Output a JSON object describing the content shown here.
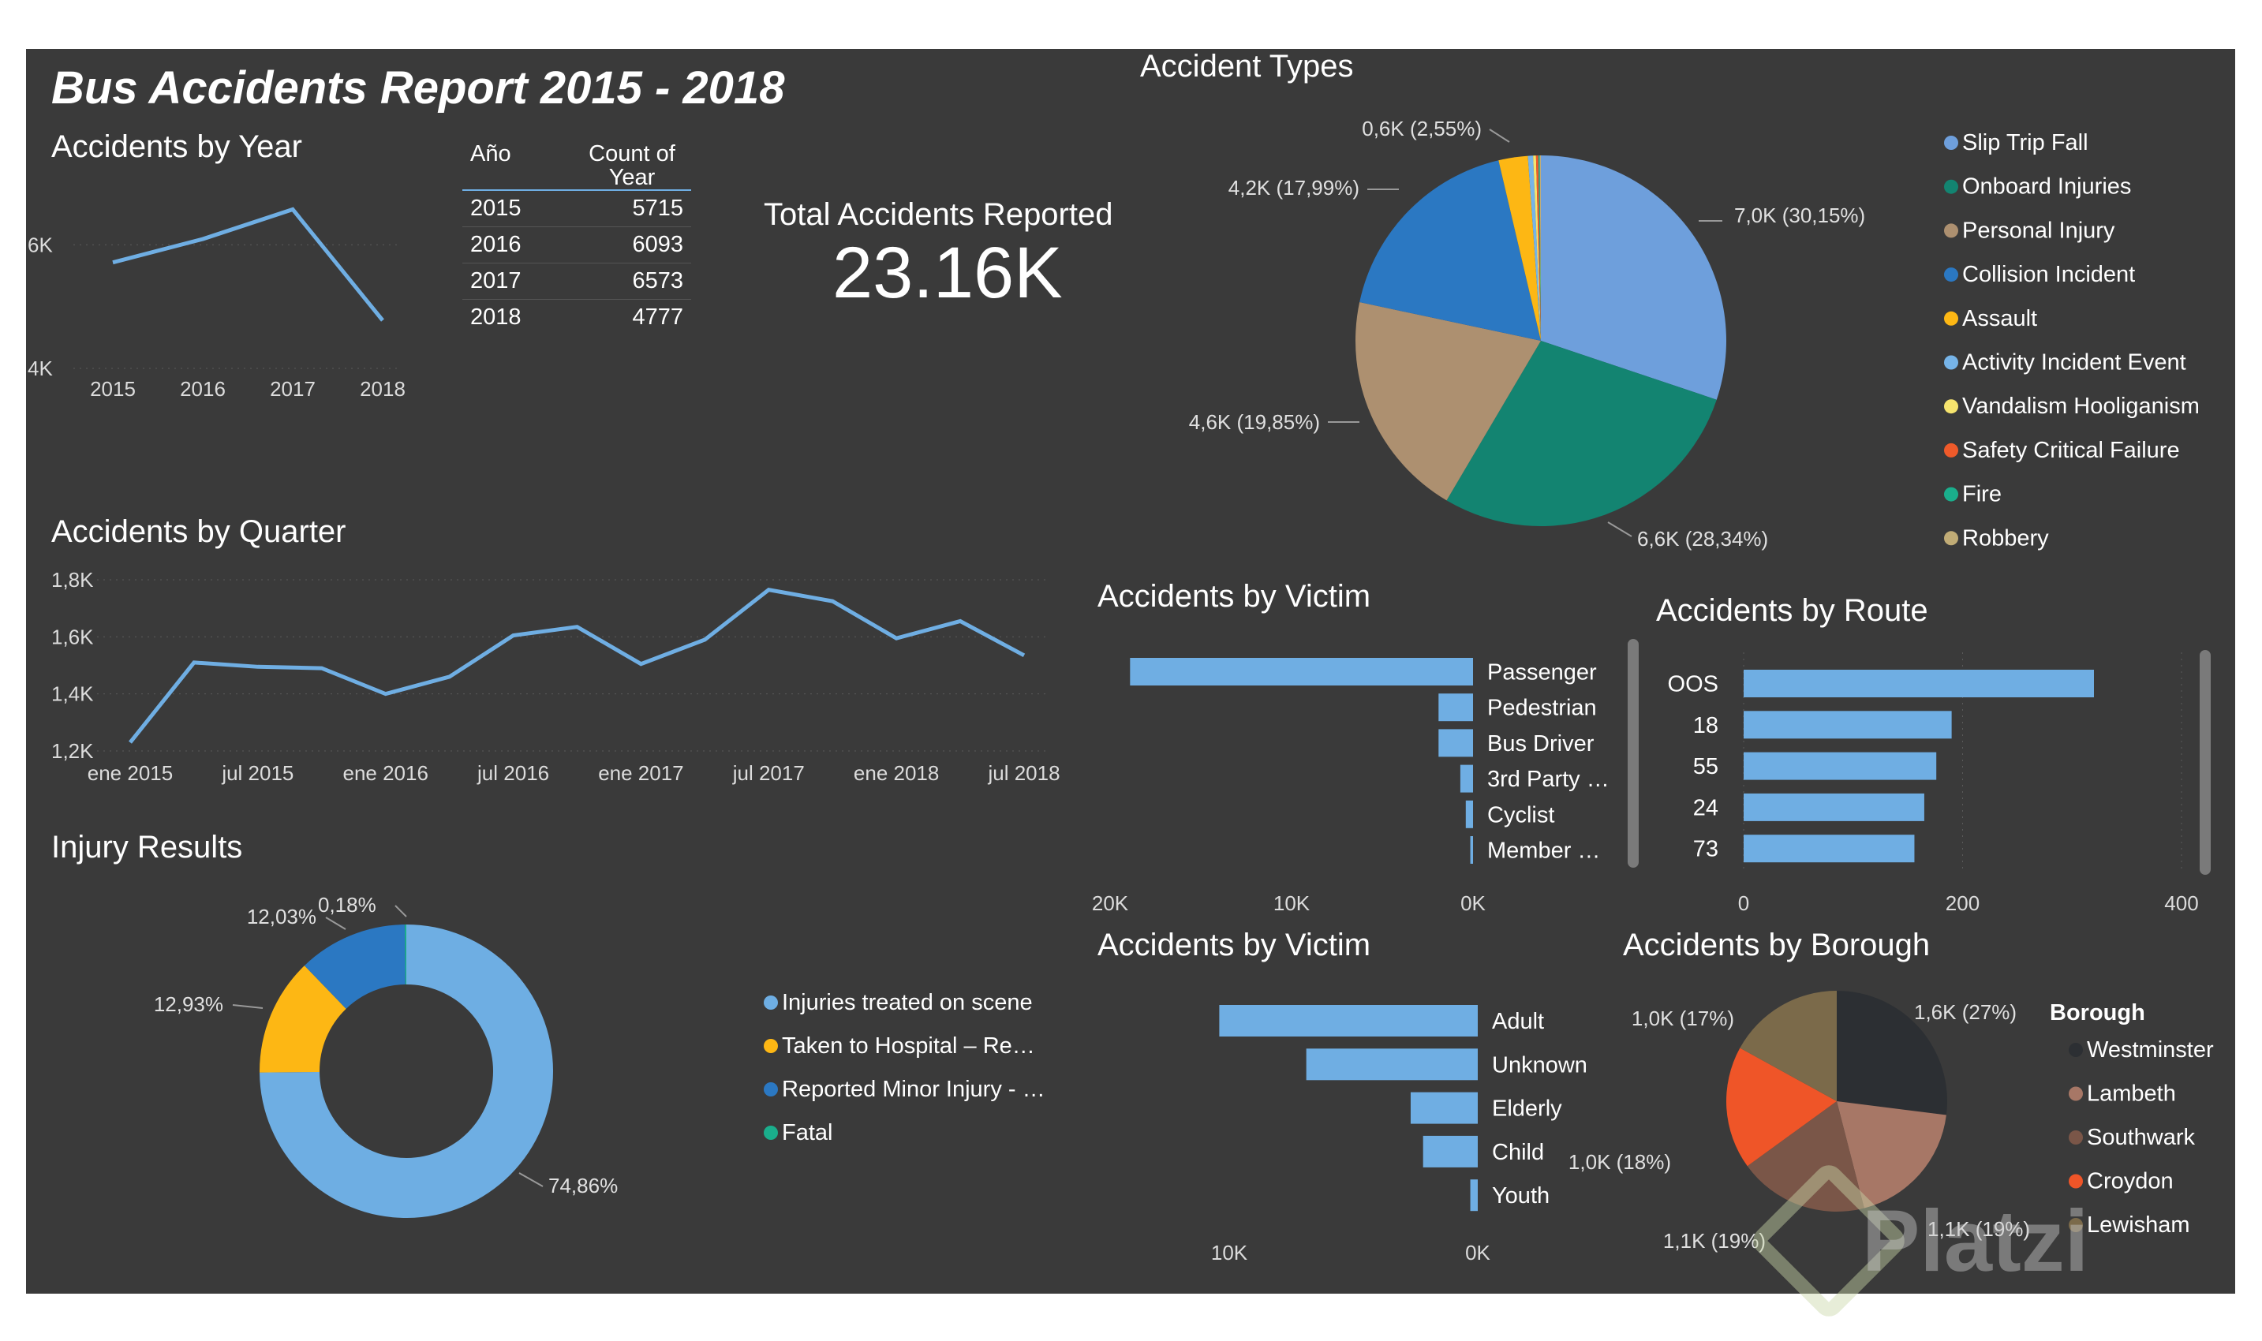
{
  "report_title": "Bus Accidents Report 2015 - 2018",
  "colors": {
    "bar": "#6FAEE3",
    "line": "#6FAEE3",
    "bg": "#3a3a3a"
  },
  "kpi": {
    "label": "Total Accidents Reported",
    "value": "23.16K"
  },
  "year_table": {
    "headers": [
      "Año",
      "Count of Year"
    ],
    "rows": [
      [
        "2015",
        "5715"
      ],
      [
        "2016",
        "6093"
      ],
      [
        "2017",
        "6573"
      ],
      [
        "2018",
        "4777"
      ]
    ]
  },
  "chart_data": [
    {
      "id": "by_year",
      "type": "line",
      "title": "Accidents by Year",
      "categories": [
        "2015",
        "2016",
        "2017",
        "2018"
      ],
      "values": [
        5715,
        6093,
        6573,
        4777
      ],
      "ylim": [
        4000,
        7000
      ],
      "yticks": [
        {
          "v": 4000,
          "label": "4K"
        },
        {
          "v": 6000,
          "label": "6K"
        }
      ]
    },
    {
      "id": "by_quarter",
      "type": "line",
      "title": "Accidents by Quarter",
      "categories": [
        "Q1 2015",
        "Q2 2015",
        "Q3 2015",
        "Q4 2015",
        "Q1 2016",
        "Q2 2016",
        "Q3 2016",
        "Q4 2016",
        "Q1 2017",
        "Q2 2017",
        "Q3 2017",
        "Q4 2017",
        "Q1 2018",
        "Q2 2018",
        "Q3 2018"
      ],
      "values": [
        1230,
        1510,
        1495,
        1490,
        1400,
        1460,
        1605,
        1635,
        1505,
        1590,
        1765,
        1725,
        1595,
        1655,
        1535
      ],
      "xticks": [
        {
          "i": 0,
          "label": "ene 2015"
        },
        {
          "i": 2,
          "label": "jul 2015"
        },
        {
          "i": 4,
          "label": "ene 2016"
        },
        {
          "i": 6,
          "label": "jul 2016"
        },
        {
          "i": 8,
          "label": "ene 2017"
        },
        {
          "i": 10,
          "label": "jul 2017"
        },
        {
          "i": 12,
          "label": "ene 2018"
        },
        {
          "i": 14,
          "label": "jul 2018"
        }
      ],
      "ylim": [
        1200,
        1800
      ],
      "yticks": [
        {
          "v": 1200,
          "label": "1,2K"
        },
        {
          "v": 1400,
          "label": "1,4K"
        },
        {
          "v": 1600,
          "label": "1,6K"
        },
        {
          "v": 1800,
          "label": "1,8K"
        }
      ]
    },
    {
      "id": "accident_types",
      "type": "pie",
      "title": "Accident Types",
      "slices": [
        {
          "name": "Slip Trip Fall",
          "value": 30.15,
          "color": "#6E9FDC",
          "label": "7,0K (30,15%)"
        },
        {
          "name": "Onboard Injuries",
          "value": 28.34,
          "color": "#138471",
          "label": "6,6K (28,34%)"
        },
        {
          "name": "Personal Injury",
          "value": 19.85,
          "color": "#AD9070",
          "label": "4,6K (19,85%)"
        },
        {
          "name": "Collision Incident",
          "value": 17.99,
          "color": "#2B78C2",
          "label": "4,2K (17,99%)"
        },
        {
          "name": "Assault",
          "value": 2.55,
          "color": "#FDB714",
          "label": "0,6K (2,55%)"
        },
        {
          "name": "Activity Incident Event",
          "value": 0.45,
          "color": "#76B4E8",
          "label": ""
        },
        {
          "name": "Vandalism Hooliganism",
          "value": 0.25,
          "color": "#F6E46E",
          "label": ""
        },
        {
          "name": "Safety Critical Failure",
          "value": 0.2,
          "color": "#EF5A2A",
          "label": ""
        },
        {
          "name": "Fire",
          "value": 0.12,
          "color": "#1AAE8C",
          "label": ""
        },
        {
          "name": "Robbery",
          "value": 0.1,
          "color": "#C1AC76",
          "label": ""
        }
      ]
    },
    {
      "id": "injury_results",
      "type": "donut",
      "title": "Injury Results",
      "slices": [
        {
          "name": "Injuries treated on scene",
          "value": 74.86,
          "color": "#6EAEE3",
          "label": "74,86%"
        },
        {
          "name": "Taken to Hospital – Re…",
          "value": 12.93,
          "color": "#FDB714",
          "label": "12,93%"
        },
        {
          "name": "Reported Minor Injury - …",
          "value": 12.03,
          "color": "#2B78C2",
          "label": "12,03%"
        },
        {
          "name": "Fatal",
          "value": 0.18,
          "color": "#1AAE8C",
          "label": "0,18%"
        }
      ]
    },
    {
      "id": "victim_type",
      "type": "bar",
      "orientation": "horizontal-reversed",
      "title": "Accidents by Victim",
      "categories": [
        "Passenger",
        "Pedestrian",
        "Bus Driver",
        "3rd Party …",
        "Cyclist",
        "Member …"
      ],
      "values": [
        18900,
        1900,
        1900,
        700,
        400,
        150
      ],
      "xlim": [
        0,
        20000
      ],
      "xticks": [
        {
          "v": 20000,
          "label": "20K"
        },
        {
          "v": 10000,
          "label": "10K"
        },
        {
          "v": 0,
          "label": "0K"
        }
      ]
    },
    {
      "id": "route",
      "type": "bar",
      "orientation": "horizontal",
      "title": "Accidents by Route",
      "categories": [
        "OOS",
        "18",
        "55",
        "24",
        "73"
      ],
      "values": [
        320,
        190,
        176,
        165,
        156
      ],
      "xlim": [
        0,
        400
      ],
      "xticks": [
        {
          "v": 0,
          "label": "0"
        },
        {
          "v": 200,
          "label": "200"
        },
        {
          "v": 400,
          "label": "400"
        }
      ]
    },
    {
      "id": "victim_age",
      "type": "bar",
      "orientation": "horizontal-reversed",
      "title": "Accidents by Victim",
      "categories": [
        "Adult",
        "Unknown",
        "Elderly",
        "Child",
        "Youth"
      ],
      "values": [
        10400,
        6900,
        2700,
        2200,
        300
      ],
      "xlim": [
        0,
        10000
      ],
      "xticks": [
        {
          "v": 10000,
          "label": "10K"
        },
        {
          "v": 0,
          "label": "0K"
        }
      ]
    },
    {
      "id": "borough",
      "type": "pie",
      "title": "Accidents by Borough",
      "legend_title": "Borough",
      "slices": [
        {
          "name": "Westminster",
          "value": 27,
          "color": "#2C2F33",
          "label": "1,6K (27%)"
        },
        {
          "name": "Lambeth",
          "value": 19,
          "color": "#A77766",
          "label": "1,1K (19%)"
        },
        {
          "name": "Southwark",
          "value": 19,
          "color": "#7A5648",
          "label": "1,1K (19%)"
        },
        {
          "name": "Croydon",
          "value": 18,
          "color": "#EF5528",
          "label": "1,0K (18%)"
        },
        {
          "name": "Lewisham",
          "value": 17,
          "color": "#7B6A4A",
          "label": "1,0K (17%)"
        }
      ]
    }
  ],
  "watermark": "Platzi"
}
